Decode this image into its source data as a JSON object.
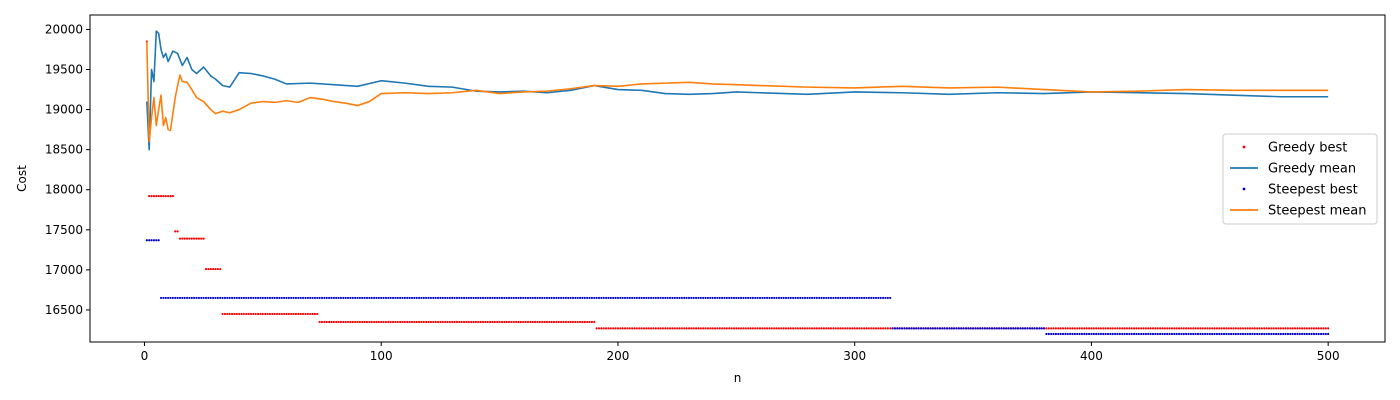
{
  "chart_data": {
    "type": "line",
    "title": "",
    "xlabel": "n",
    "ylabel": "Cost",
    "xlim": [
      -23,
      524
    ],
    "ylim": [
      16100,
      20180
    ],
    "xticks": [
      0,
      100,
      200,
      300,
      400,
      500
    ],
    "yticks": [
      16500,
      17000,
      17500,
      18000,
      18500,
      19000,
      19500,
      20000
    ],
    "grid": false,
    "legend_position": "center-right",
    "series": [
      {
        "name": "Greedy best",
        "kind": "dotted-step",
        "color": "#ff0000",
        "steps": [
          {
            "from": 1,
            "to": 1,
            "y": 19850
          },
          {
            "from": 2,
            "to": 12,
            "y": 17920
          },
          {
            "from": 13,
            "to": 14,
            "y": 17480
          },
          {
            "from": 15,
            "to": 25,
            "y": 17390
          },
          {
            "from": 26,
            "to": 32,
            "y": 17010
          },
          {
            "from": 33,
            "to": 73,
            "y": 16450
          },
          {
            "from": 74,
            "to": 190,
            "y": 16350
          },
          {
            "from": 191,
            "to": 500,
            "y": 16270
          }
        ]
      },
      {
        "name": "Greedy mean",
        "kind": "line",
        "color": "#1f77b4",
        "x": [
          1,
          2,
          3,
          4,
          5,
          6,
          7,
          8,
          9,
          10,
          12,
          14,
          16,
          18,
          20,
          22,
          25,
          28,
          30,
          33,
          36,
          40,
          45,
          50,
          55,
          60,
          70,
          80,
          90,
          100,
          110,
          120,
          130,
          140,
          150,
          160,
          170,
          180,
          190,
          200,
          210,
          220,
          230,
          240,
          250,
          260,
          280,
          300,
          320,
          340,
          360,
          380,
          400,
          420,
          440,
          460,
          480,
          500
        ],
        "y": [
          19100,
          18500,
          19500,
          19350,
          19980,
          19950,
          19750,
          19650,
          19700,
          19600,
          19730,
          19700,
          19550,
          19650,
          19500,
          19450,
          19530,
          19420,
          19380,
          19300,
          19280,
          19460,
          19450,
          19420,
          19380,
          19320,
          19330,
          19310,
          19290,
          19360,
          19330,
          19290,
          19280,
          19230,
          19220,
          19230,
          19210,
          19240,
          19300,
          19250,
          19240,
          19200,
          19190,
          19200,
          19220,
          19210,
          19190,
          19220,
          19210,
          19190,
          19210,
          19200,
          19220,
          19210,
          19200,
          19180,
          19160,
          19160
        ]
      },
      {
        "name": "Steepest best",
        "kind": "dotted-step",
        "color": "#0000cc",
        "steps": [
          {
            "from": 1,
            "to": 6,
            "y": 17370
          },
          {
            "from": 7,
            "to": 315,
            "y": 16650
          },
          {
            "from": 316,
            "to": 380,
            "y": 16270
          },
          {
            "from": 381,
            "to": 500,
            "y": 16200
          }
        ]
      },
      {
        "name": "Steepest mean",
        "kind": "line",
        "color": "#ff7f0e",
        "x": [
          1,
          2,
          3,
          4,
          5,
          6,
          7,
          8,
          9,
          10,
          11,
          12,
          13,
          14,
          15,
          16,
          18,
          20,
          22,
          25,
          28,
          30,
          33,
          36,
          40,
          45,
          50,
          55,
          60,
          65,
          70,
          75,
          80,
          85,
          90,
          95,
          100,
          110,
          120,
          130,
          140,
          150,
          160,
          170,
          180,
          190,
          200,
          210,
          220,
          230,
          240,
          250,
          260,
          280,
          300,
          320,
          340,
          360,
          380,
          400,
          420,
          440,
          460,
          480,
          500
        ],
        "y": [
          19850,
          18600,
          18900,
          19150,
          18800,
          19000,
          19180,
          18800,
          18900,
          18750,
          18740,
          18950,
          19150,
          19300,
          19430,
          19350,
          19340,
          19250,
          19150,
          19100,
          19000,
          18950,
          18980,
          18960,
          19000,
          19080,
          19100,
          19090,
          19110,
          19090,
          19150,
          19130,
          19100,
          19080,
          19050,
          19100,
          19200,
          19210,
          19200,
          19210,
          19240,
          19200,
          19220,
          19230,
          19260,
          19300,
          19290,
          19320,
          19330,
          19340,
          19320,
          19310,
          19300,
          19280,
          19270,
          19290,
          19270,
          19280,
          19250,
          19220,
          19230,
          19250,
          19240,
          19240,
          19240
        ]
      }
    ]
  }
}
